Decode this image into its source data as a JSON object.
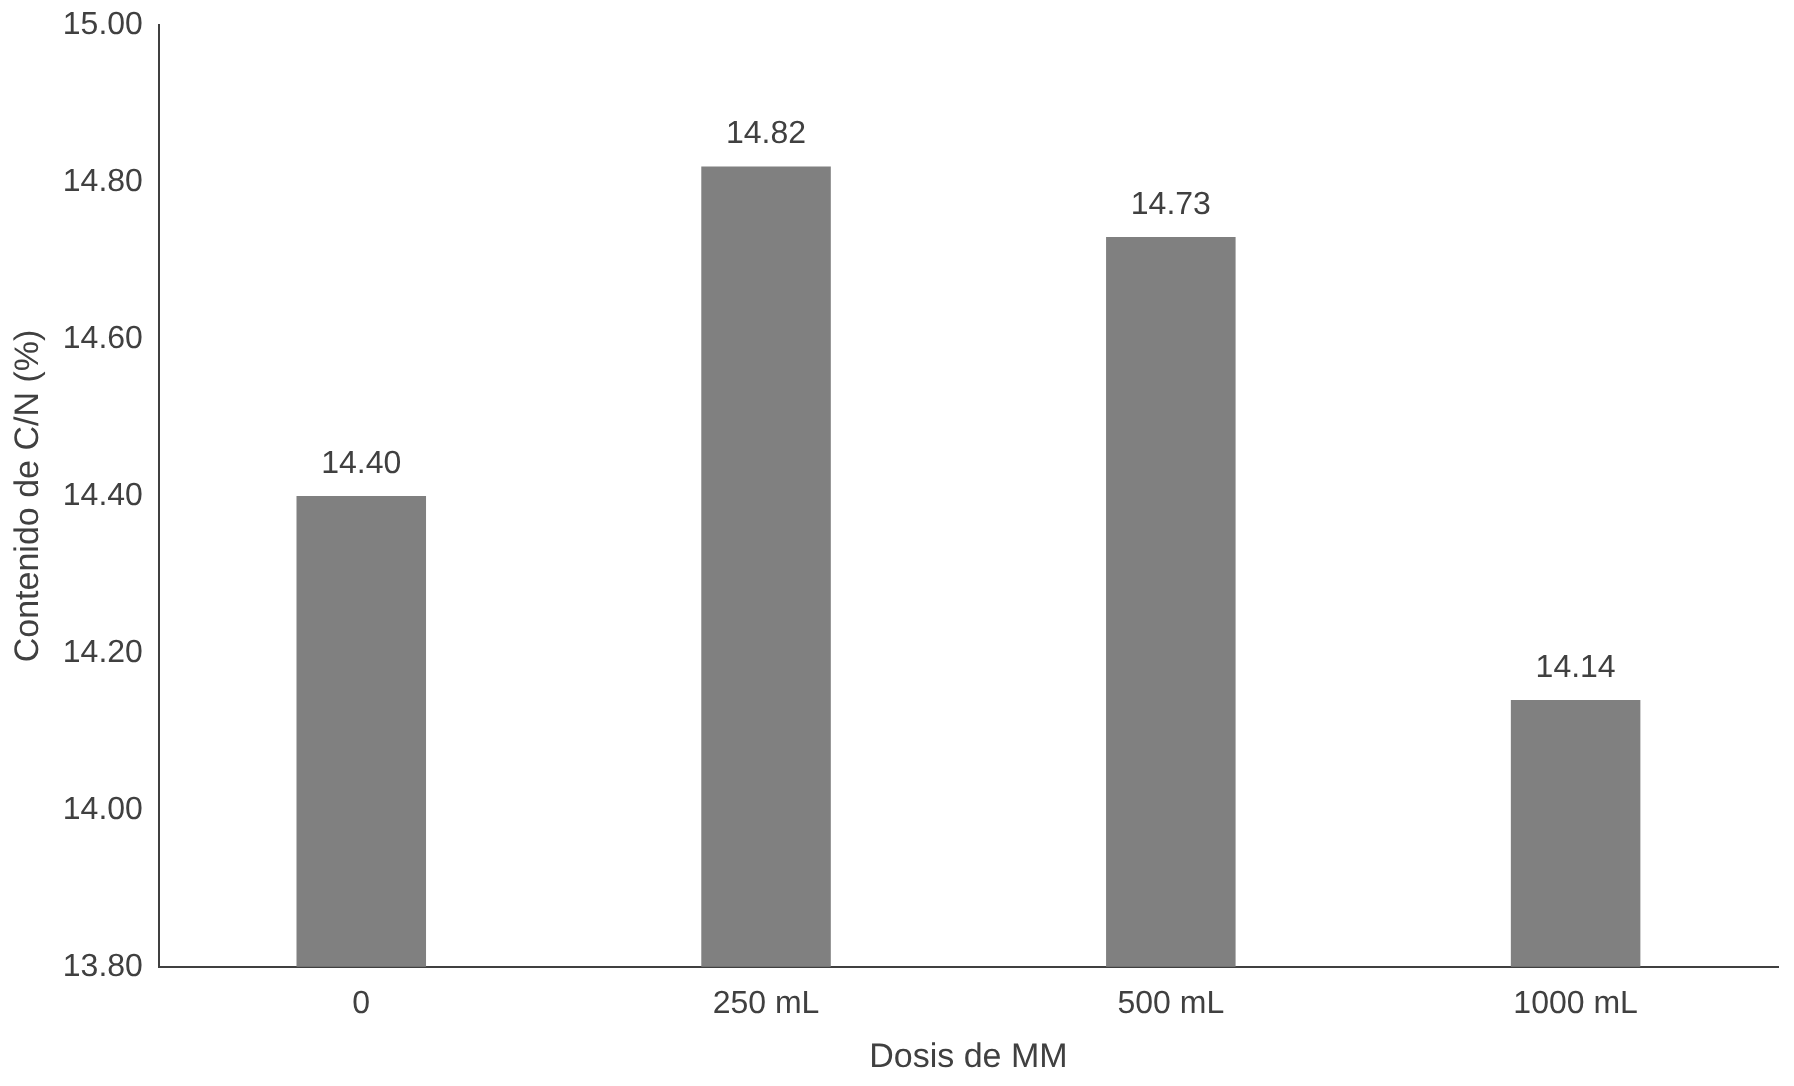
{
  "chart_data": {
    "type": "bar",
    "xlabel": "Dosis de MM",
    "ylabel": "Contenido de C/N (%)",
    "categories": [
      "0",
      "250 mL",
      "500 mL",
      "1000 mL"
    ],
    "values": [
      14.4,
      14.82,
      14.73,
      14.14
    ],
    "value_labels": [
      "14.40",
      "14.82",
      "14.73",
      "14.14"
    ],
    "color": "#808080",
    "ylim": [
      13.8,
      15.0
    ],
    "yticks": [
      {
        "value": 13.8,
        "label": "13.80"
      },
      {
        "value": 14.0,
        "label": "14.00"
      },
      {
        "value": 14.2,
        "label": "14.20"
      },
      {
        "value": 14.4,
        "label": "14.40"
      },
      {
        "value": 14.6,
        "label": "14.60"
      },
      {
        "value": 14.8,
        "label": "14.80"
      },
      {
        "value": 15.0,
        "label": "15.00"
      }
    ],
    "grid": false,
    "legend": false
  }
}
